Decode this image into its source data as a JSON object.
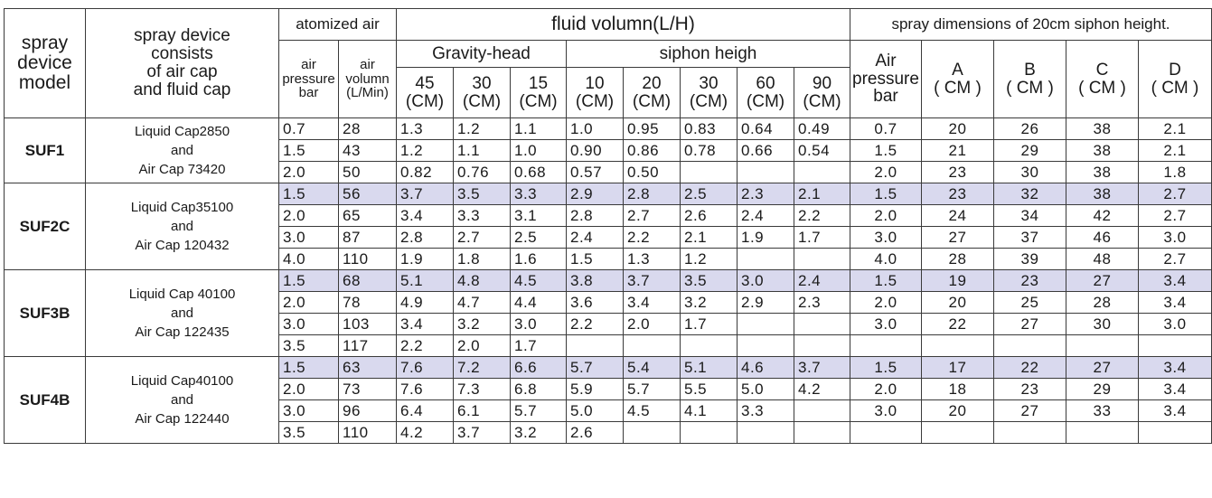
{
  "header": {
    "model": [
      "spray",
      "device",
      "model"
    ],
    "consists": [
      "spray device",
      "consists",
      "of air cap",
      "and fluid cap"
    ],
    "atomized_air": "atomized air",
    "air_pressure": [
      "air",
      "pressure",
      "bar"
    ],
    "air_volumn": [
      "air",
      "volumn",
      "(L/Min)"
    ],
    "fluid_volumn": "fluid volumn(L/H)",
    "gravity_head": "Gravity-head",
    "siphon_heigh": "siphon heigh",
    "spray_dimensions": "spray dimensions of 20cm siphon height.",
    "dim_air_pressure": [
      "Air",
      "pressure",
      "bar"
    ],
    "gravity_cols": [
      [
        "45",
        "(CM)"
      ],
      [
        "30",
        "(CM)"
      ],
      [
        "15",
        "(CM)"
      ]
    ],
    "siphon_cols": [
      [
        "10",
        "(CM)"
      ],
      [
        "20",
        "(CM)"
      ],
      [
        "30",
        "(CM)"
      ],
      [
        "60",
        "(CM)"
      ],
      [
        "90",
        "(CM)"
      ]
    ],
    "dim_cols": [
      [
        "A",
        "( CM )"
      ],
      [
        "B",
        "( CM )"
      ],
      [
        "C",
        "( CM )"
      ],
      [
        "D",
        "( CM )"
      ]
    ]
  },
  "groups": [
    {
      "model": "SUF1",
      "desc": [
        "Liquid Cap2850",
        "and",
        "Air Cap  73420"
      ],
      "rows": [
        {
          "hl": false,
          "cells": [
            "0.7",
            "28",
            "1.3",
            "1.2",
            "1.1",
            "1.0",
            "0.95",
            "0.83",
            "0.64",
            "0.49",
            "0.7",
            "20",
            "26",
            "38",
            "2.1"
          ]
        },
        {
          "hl": false,
          "cells": [
            "1.5",
            "43",
            "1.2",
            "1.1",
            "1.0",
            "0.90",
            "0.86",
            "0.78",
            "0.66",
            "0.54",
            "1.5",
            "21",
            "29",
            "38",
            "2.1"
          ]
        },
        {
          "hl": false,
          "cells": [
            "2.0",
            "50",
            "0.82",
            "0.76",
            "0.68",
            "0.57",
            "0.50",
            "",
            "",
            "",
            "2.0",
            "23",
            "30",
            "38",
            "1.8"
          ]
        }
      ]
    },
    {
      "model": "SUF2C",
      "desc": [
        "Liquid Cap35100",
        "and",
        "Air Cap  120432"
      ],
      "rows": [
        {
          "hl": true,
          "cells": [
            "1.5",
            "56",
            "3.7",
            "3.5",
            "3.3",
            "2.9",
            "2.8",
            "2.5",
            "2.3",
            "2.1",
            "1.5",
            "23",
            "32",
            "38",
            "2.7"
          ]
        },
        {
          "hl": false,
          "cells": [
            "2.0",
            "65",
            "3.4",
            "3.3",
            "3.1",
            "2.8",
            "2.7",
            "2.6",
            "2.4",
            "2.2",
            "2.0",
            "24",
            "34",
            "42",
            "2.7"
          ]
        },
        {
          "hl": false,
          "cells": [
            "3.0",
            "87",
            "2.8",
            "2.7",
            "2.5",
            "2.4",
            "2.2",
            "2.1",
            "1.9",
            "1.7",
            "3.0",
            "27",
            "37",
            "46",
            "3.0"
          ]
        },
        {
          "hl": false,
          "cells": [
            "4.0",
            "110",
            "1.9",
            "1.8",
            "1.6",
            "1.5",
            "1.3",
            "1.2",
            "",
            "",
            "4.0",
            "28",
            "39",
            "48",
            "2.7"
          ]
        }
      ]
    },
    {
      "model": "SUF3B",
      "desc": [
        "Liquid Cap 40100",
        "and",
        "Air Cap  122435"
      ],
      "rows": [
        {
          "hl": true,
          "cells": [
            "1.5",
            "68",
            "5.1",
            "4.8",
            "4.5",
            "3.8",
            "3.7",
            "3.5",
            "3.0",
            "2.4",
            "1.5",
            "19",
            "23",
            "27",
            "3.4"
          ]
        },
        {
          "hl": false,
          "cells": [
            "2.0",
            "78",
            "4.9",
            "4.7",
            "4.4",
            "3.6",
            "3.4",
            "3.2",
            "2.9",
            "2.3",
            "2.0",
            "20",
            "25",
            "28",
            "3.4"
          ]
        },
        {
          "hl": false,
          "cells": [
            "3.0",
            "103",
            "3.4",
            "3.2",
            "3.0",
            "2.2",
            "2.0",
            "1.7",
            "",
            "",
            "3.0",
            "22",
            "27",
            "30",
            "3.0"
          ]
        },
        {
          "hl": false,
          "cells": [
            "3.5",
            "117",
            "2.2",
            "2.0",
            "1.7",
            "",
            "",
            "",
            "",
            "",
            "",
            "",
            "",
            "",
            ""
          ]
        }
      ]
    },
    {
      "model": "SUF4B",
      "desc": [
        "Liquid Cap40100",
        "and",
        "Air Cap  122440"
      ],
      "rows": [
        {
          "hl": true,
          "cells": [
            "1.5",
            "63",
            "7.6",
            "7.2",
            "6.6",
            "5.7",
            "5.4",
            "5.1",
            "4.6",
            "3.7",
            "1.5",
            "17",
            "22",
            "27",
            "3.4"
          ]
        },
        {
          "hl": false,
          "cells": [
            "2.0",
            "73",
            "7.6",
            "7.3",
            "6.8",
            "5.9",
            "5.7",
            "5.5",
            "5.0",
            "4.2",
            "2.0",
            "18",
            "23",
            "29",
            "3.4"
          ]
        },
        {
          "hl": false,
          "cells": [
            "3.0",
            "96",
            "6.4",
            "6.1",
            "5.7",
            "5.0",
            "4.5",
            "4.1",
            "3.3",
            "",
            "3.0",
            "20",
            "27",
            "33",
            "3.4"
          ]
        },
        {
          "hl": false,
          "cells": [
            "3.5",
            "110",
            "4.2",
            "3.7",
            "3.2",
            "2.6",
            "",
            "",
            "",
            "",
            "",
            "",
            "",
            "",
            ""
          ]
        }
      ]
    }
  ],
  "colors": {
    "highlight_row": "#d9d9ee",
    "border": "#3a3a3a",
    "text": "#1a1a1a"
  }
}
